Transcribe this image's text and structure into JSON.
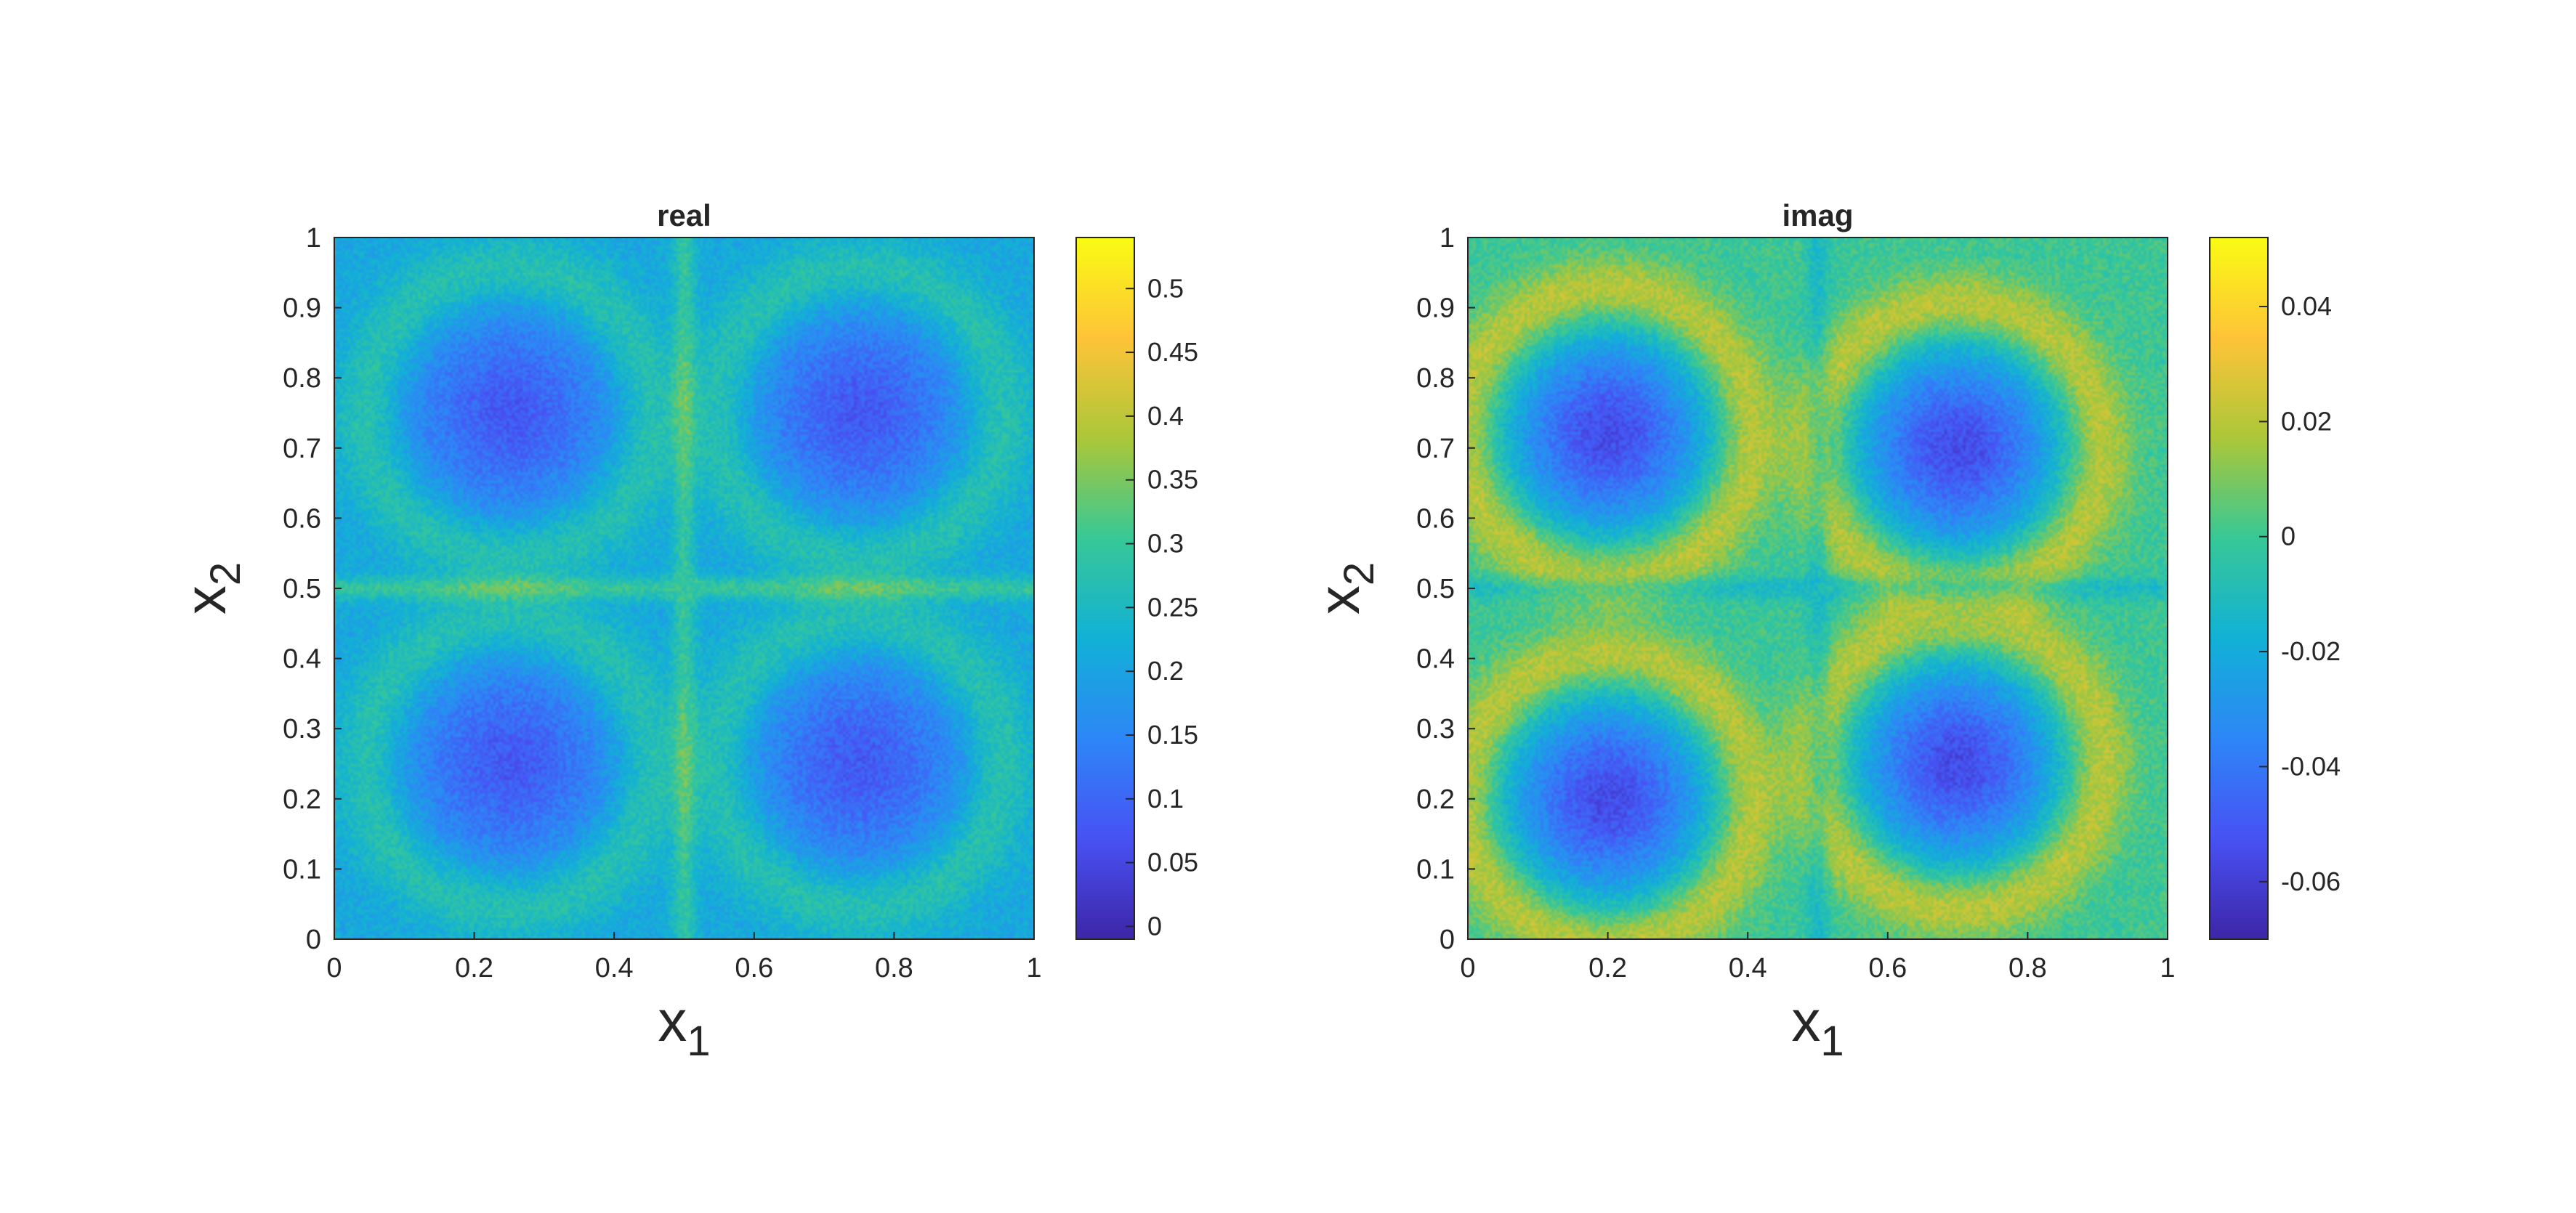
{
  "chart_data": [
    {
      "type": "heatmap",
      "title": "real",
      "xlabel": {
        "base": "x",
        "sub": "1"
      },
      "ylabel": {
        "base": "x",
        "sub": "2"
      },
      "xlim": [
        0,
        1
      ],
      "ylim": [
        0,
        1
      ],
      "xticks": [
        "0",
        "0.2",
        "0.4",
        "0.6",
        "0.8",
        "1"
      ],
      "xtick_values": [
        0,
        0.2,
        0.4,
        0.6,
        0.8,
        1
      ],
      "yticks": [
        "0",
        "0.1",
        "0.2",
        "0.3",
        "0.4",
        "0.5",
        "0.6",
        "0.7",
        "0.8",
        "0.9",
        "1"
      ],
      "ytick_values": [
        0,
        0.1,
        0.2,
        0.3,
        0.4,
        0.5,
        0.6,
        0.7,
        0.8,
        0.9,
        1
      ],
      "colormap": "parula",
      "clim": [
        -0.01,
        0.54
      ],
      "colorbar_ticks": [
        "0",
        "0.05",
        "0.1",
        "0.15",
        "0.2",
        "0.25",
        "0.3",
        "0.35",
        "0.4",
        "0.45",
        "0.5"
      ],
      "colorbar_tick_values": [
        0,
        0.05,
        0.1,
        0.15,
        0.2,
        0.25,
        0.3,
        0.35,
        0.4,
        0.45,
        0.5
      ],
      "field": {
        "background": 0.21,
        "vortex_centers": [
          [
            0.25,
            0.75
          ],
          [
            0.75,
            0.75
          ],
          [
            0.25,
            0.25
          ],
          [
            0.75,
            0.25
          ]
        ],
        "core_min": 0.08,
        "ring_max": 0.3,
        "cross_peak": 0.35
      }
    },
    {
      "type": "heatmap",
      "title": "imag",
      "xlabel": {
        "base": "x",
        "sub": "1"
      },
      "ylabel": {
        "base": "x",
        "sub": "2"
      },
      "xlim": [
        0,
        1
      ],
      "ylim": [
        0,
        1
      ],
      "xticks": [
        "0",
        "0.2",
        "0.4",
        "0.6",
        "0.8",
        "1"
      ],
      "xtick_values": [
        0,
        0.2,
        0.4,
        0.6,
        0.8,
        1
      ],
      "yticks": [
        "0",
        "0.1",
        "0.2",
        "0.3",
        "0.4",
        "0.5",
        "0.6",
        "0.7",
        "0.8",
        "0.9",
        "1"
      ],
      "ytick_values": [
        0,
        0.1,
        0.2,
        0.3,
        0.4,
        0.5,
        0.6,
        0.7,
        0.8,
        0.9,
        1
      ],
      "colormap": "parula",
      "clim": [
        -0.07,
        0.052
      ],
      "colorbar_ticks": [
        "-0.06",
        "-0.04",
        "-0.02",
        "0",
        "0.02",
        "0.04"
      ],
      "colorbar_tick_values": [
        -0.06,
        -0.04,
        -0.02,
        0,
        0.02,
        0.04
      ],
      "field": {
        "background": 0.0,
        "vortex_centers": [
          [
            0.2,
            0.72
          ],
          [
            0.7,
            0.7
          ],
          [
            0.2,
            0.2
          ],
          [
            0.7,
            0.25
          ]
        ],
        "core_min": -0.055,
        "ring_max": 0.03,
        "cross_peak": -0.02
      }
    }
  ]
}
